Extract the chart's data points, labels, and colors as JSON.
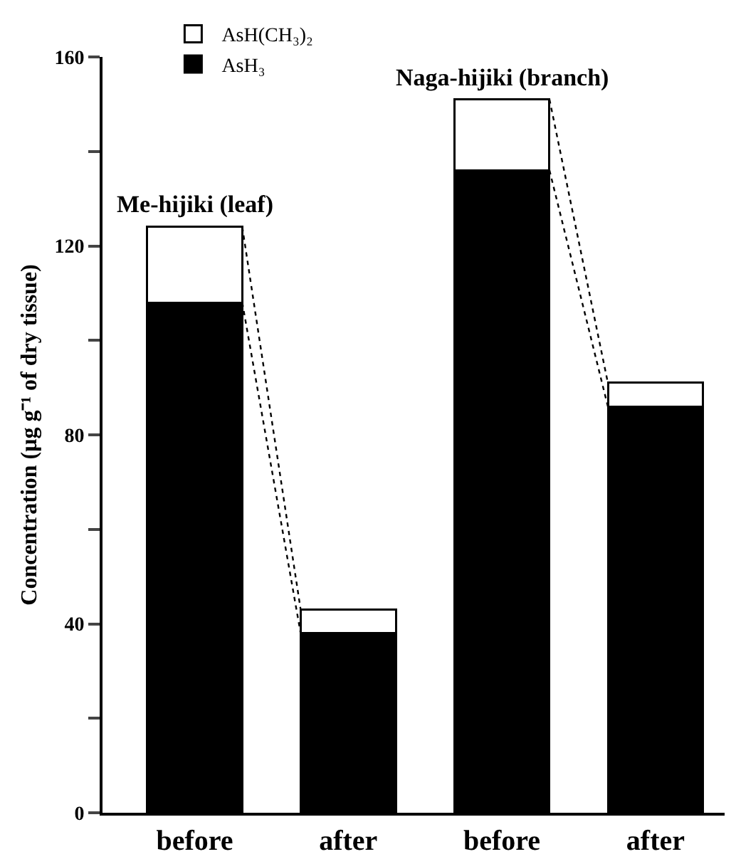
{
  "chart_data": {
    "type": "bar",
    "stacked": true,
    "categories": [
      "before",
      "after",
      "before",
      "after"
    ],
    "ylabel": "Concentration (μg g⁻¹ of dry tissue)",
    "series": [
      {
        "name": "AsH₃",
        "color": "#000000",
        "values": [
          108,
          38,
          136,
          86
        ]
      },
      {
        "name": "AsH(CH₃)₂",
        "color": "#ffffff",
        "values": [
          16,
          5,
          15,
          5
        ]
      }
    ],
    "annotations": [
      "Me-hijiki (leaf)",
      "Naga-hijiki (branch)"
    ],
    "ylim": [
      0,
      160
    ],
    "yticks": [
      0,
      {
        "value": 20,
        "label": null
      },
      40,
      {
        "value": 60,
        "label": null
      },
      80,
      {
        "value": 100,
        "label": null
      },
      120,
      {
        "value": 140,
        "label": null
      },
      160
    ],
    "grid": false,
    "legend": "top left"
  }
}
